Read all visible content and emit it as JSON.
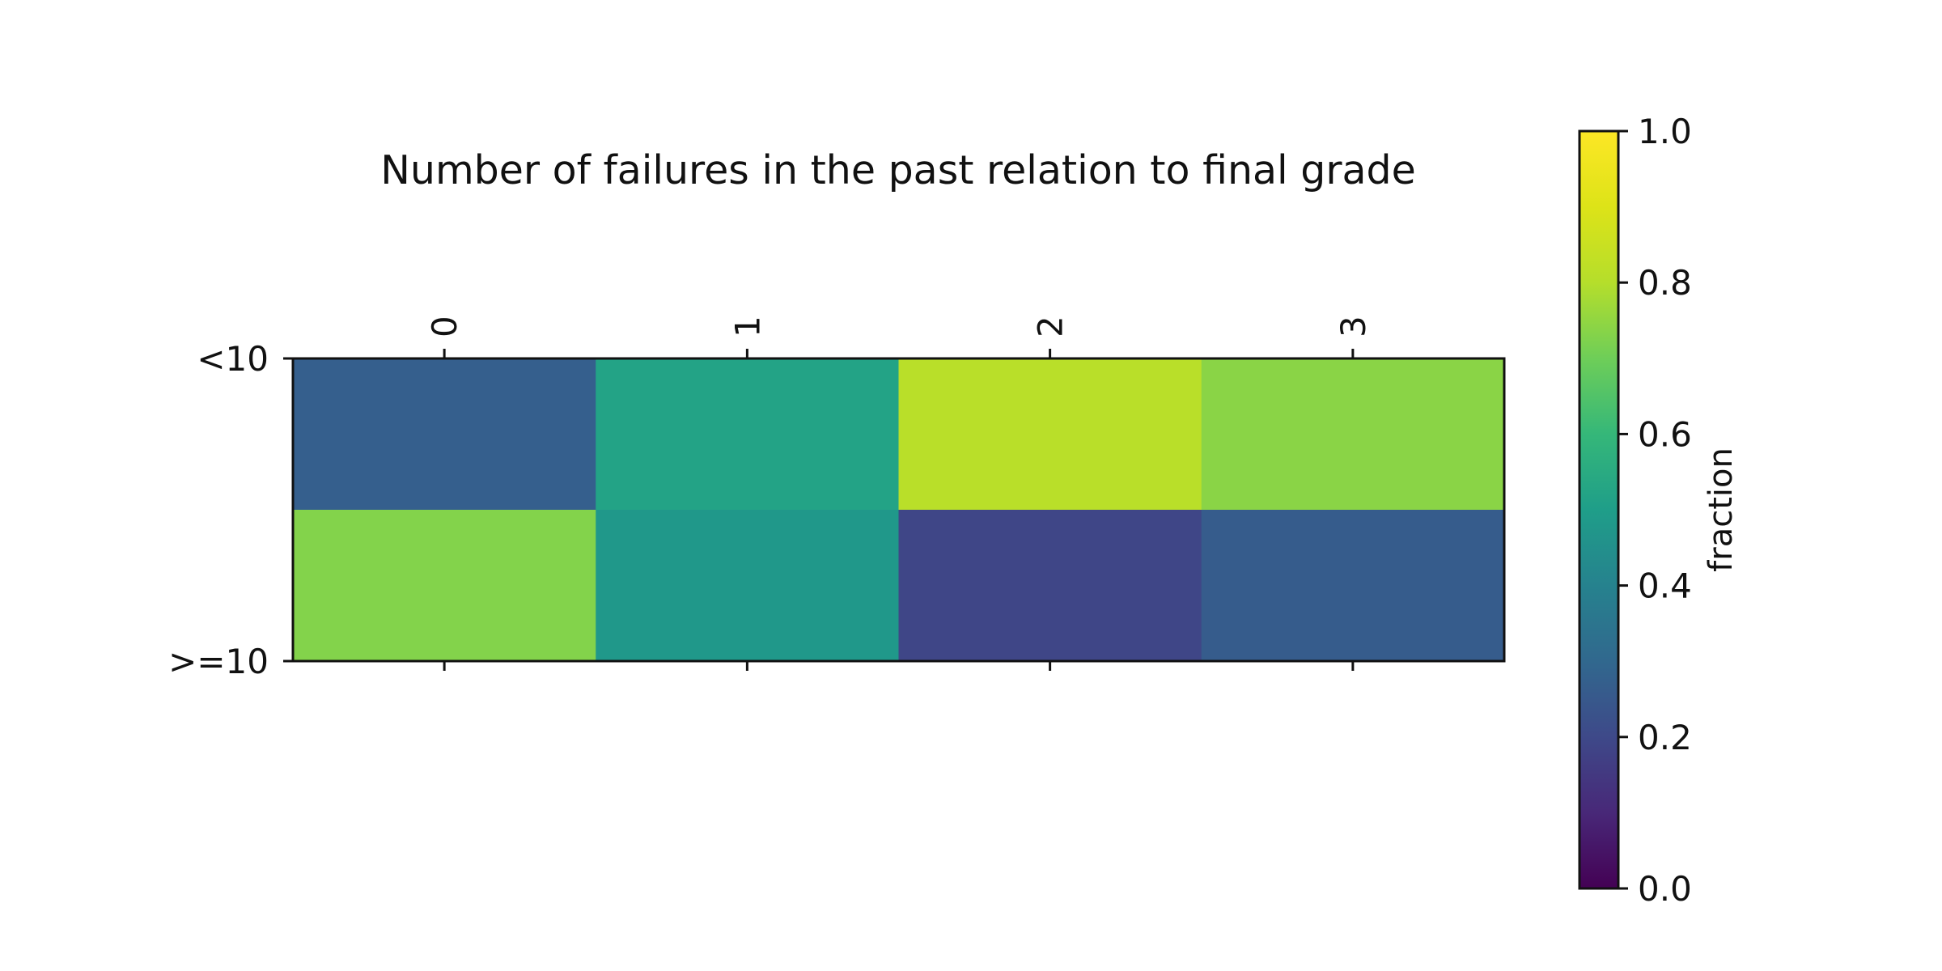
{
  "chart_data": {
    "type": "heatmap",
    "title": "Number of failures in the past relation to final grade",
    "x_ticks": [
      "0",
      "1",
      "2",
      "3"
    ],
    "y_ticks": [
      "<10",
      ">=10"
    ],
    "x_tick_position": "top",
    "values": [
      [
        0.27,
        0.52,
        0.81,
        0.74
      ],
      [
        0.73,
        0.48,
        0.19,
        0.26
      ]
    ],
    "colormap": "viridis",
    "colorbar": {
      "label": "fraction",
      "range": [
        0.0,
        1.0
      ],
      "ticks": [
        "0.0",
        "0.2",
        "0.4",
        "0.6",
        "0.8",
        "1.0"
      ],
      "placement": "right"
    },
    "grid": false
  }
}
